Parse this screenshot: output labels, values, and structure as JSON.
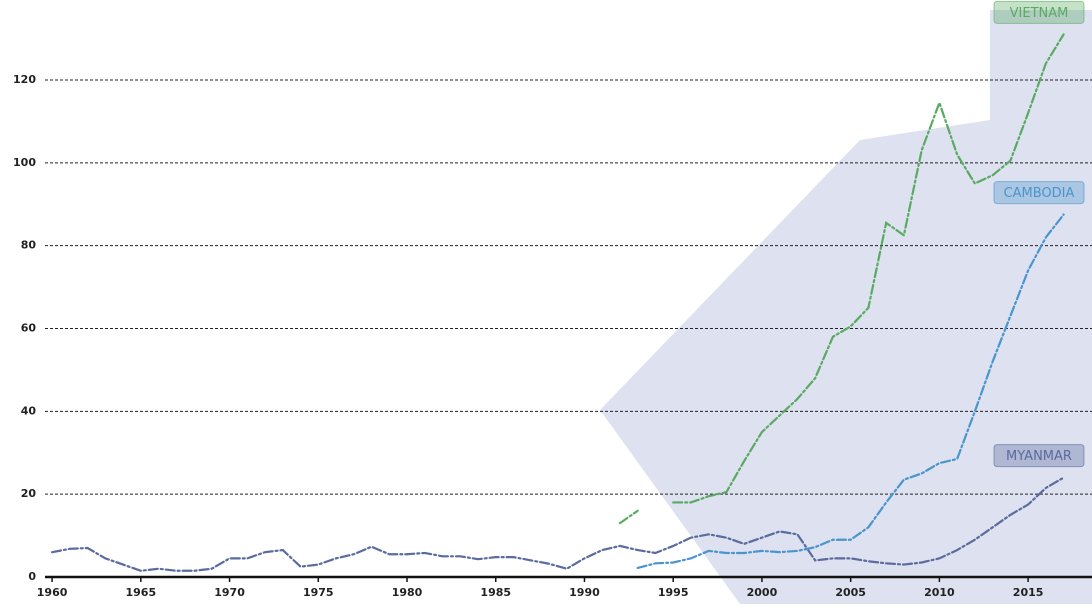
{
  "chart_data": {
    "type": "line",
    "x": [
      1960,
      1961,
      1962,
      1963,
      1964,
      1965,
      1966,
      1967,
      1968,
      1969,
      1970,
      1971,
      1972,
      1973,
      1974,
      1975,
      1976,
      1977,
      1978,
      1979,
      1980,
      1981,
      1982,
      1983,
      1984,
      1985,
      1986,
      1987,
      1988,
      1989,
      1990,
      1991,
      1992,
      1993,
      1994,
      1995,
      1996,
      1997,
      1998,
      1999,
      2000,
      2001,
      2002,
      2003,
      2004,
      2005,
      2006,
      2007,
      2008,
      2009,
      2010,
      2011,
      2012,
      2013,
      2014,
      2015,
      2016,
      2017
    ],
    "series": [
      {
        "name": "MYANMAR",
        "color": "#5a6b9e",
        "values": [
          6,
          6.8,
          7,
          4.5,
          3,
          1.5,
          2,
          1.5,
          1.5,
          2,
          4.5,
          4.5,
          6,
          6.5,
          2.5,
          3,
          4.5,
          5.5,
          7.3,
          5.5,
          5.5,
          5.8,
          5,
          5,
          4.3,
          4.8,
          4.8,
          4,
          3.2,
          2,
          4.5,
          6.5,
          7.5,
          6.5,
          5.8,
          7.5,
          9.5,
          10.3,
          9.5,
          8,
          9.5,
          11,
          10.3,
          4,
          4.5,
          4.5,
          3.8,
          3.3,
          3,
          3.5,
          4.5,
          6.5,
          9,
          12,
          15,
          17.5,
          21.5,
          24
        ]
      },
      {
        "name": "CAMBODIA",
        "color": "#4a95cc",
        "values": [
          null,
          null,
          null,
          null,
          null,
          null,
          null,
          null,
          null,
          null,
          null,
          null,
          null,
          null,
          null,
          null,
          null,
          null,
          null,
          null,
          null,
          null,
          null,
          null,
          null,
          null,
          null,
          null,
          null,
          null,
          null,
          null,
          null,
          2.2,
          3.3,
          3.5,
          4.5,
          6.3,
          5.8,
          5.8,
          6.3,
          6,
          6.3,
          7.2,
          9,
          9,
          12,
          18,
          23.5,
          25,
          27.5,
          28.5,
          40,
          52,
          63,
          74,
          82,
          87.5
        ]
      },
      {
        "name": "VIETNAM",
        "color": "#5aaa62",
        "values": [
          null,
          null,
          null,
          null,
          null,
          null,
          null,
          null,
          null,
          null,
          null,
          null,
          null,
          null,
          null,
          null,
          null,
          null,
          null,
          null,
          null,
          null,
          null,
          null,
          null,
          null,
          null,
          null,
          null,
          null,
          null,
          null,
          13,
          16,
          null,
          18,
          18,
          19.5,
          20.5,
          28,
          35,
          39,
          43,
          48,
          58,
          60.5,
          65,
          85.5,
          82.5,
          103,
          114.5,
          102,
          95,
          97,
          100.5,
          112,
          124,
          131
        ]
      }
    ],
    "xlim": [
      1959.6,
      2018.6
    ],
    "xticks": [
      1960,
      1965,
      1970,
      1975,
      1980,
      1985,
      1990,
      1995,
      2000,
      2005,
      2010,
      2015
    ],
    "ylim": [
      0,
      134
    ],
    "yticks": [
      0,
      20,
      40,
      60,
      80,
      100,
      120
    ],
    "grid": true
  }
}
